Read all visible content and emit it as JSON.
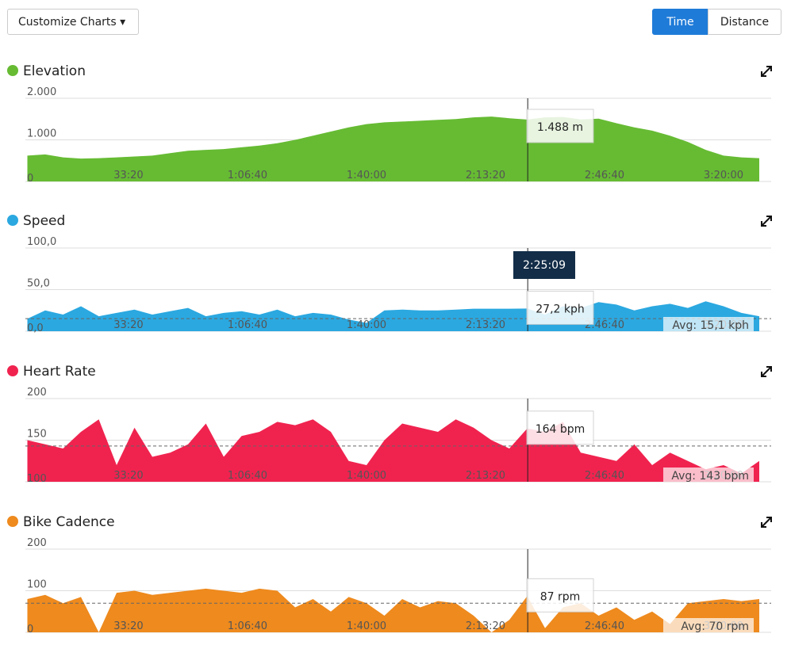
{
  "controls": {
    "customize": "Customize Charts",
    "time": "Time",
    "distance": "Distance"
  },
  "cursor": {
    "value": 8709,
    "label": "2:25:09"
  },
  "chart_data": [
    {
      "type": "area",
      "title": "Elevation",
      "color": "#66bb33",
      "x": [
        300,
        600,
        900,
        1200,
        1500,
        1800,
        2100,
        2400,
        2700,
        3000,
        3300,
        3600,
        3900,
        4200,
        4500,
        4800,
        5100,
        5400,
        5700,
        6000,
        6300,
        6600,
        6900,
        7200,
        7500,
        7800,
        8100,
        8400,
        8700,
        9000,
        9300,
        9600,
        9900,
        10200,
        10500,
        10800,
        11100,
        11400,
        11700,
        12000,
        12300,
        12600
      ],
      "values": [
        620,
        650,
        580,
        550,
        560,
        580,
        600,
        620,
        680,
        740,
        760,
        780,
        820,
        860,
        920,
        1000,
        1100,
        1200,
        1300,
        1380,
        1420,
        1440,
        1460,
        1480,
        1500,
        1540,
        1560,
        1520,
        1488,
        1540,
        1550,
        1490,
        1510,
        1400,
        1300,
        1220,
        1100,
        950,
        760,
        620,
        580,
        560
      ],
      "xlim": [
        267,
        12800
      ],
      "xticks": [
        {
          "value": 2000,
          "label": "33:20"
        },
        {
          "value": 4000,
          "label": "1:06:40"
        },
        {
          "value": 6000,
          "label": "1:40:00"
        },
        {
          "value": 8000,
          "label": "2:13:20"
        },
        {
          "value": 10000,
          "label": "2:46:40"
        },
        {
          "value": 12000,
          "label": "3:20:00"
        }
      ],
      "ylim": [
        0,
        2000
      ],
      "yticks": [
        0,
        {
          "value": 1000,
          "label": "1.000"
        },
        {
          "value": 2000,
          "label": "2.000"
        }
      ],
      "grid": true,
      "cursor_value": {
        "value": 1488,
        "label": "1.488 m"
      }
    },
    {
      "type": "area",
      "title": "Speed",
      "color": "#2ba8e0",
      "x": [
        300,
        600,
        900,
        1200,
        1500,
        1800,
        2100,
        2400,
        2700,
        3000,
        3300,
        3600,
        3900,
        4200,
        4500,
        4800,
        5100,
        5400,
        5700,
        6000,
        6300,
        6600,
        6900,
        7200,
        7500,
        7800,
        8100,
        8400,
        8700,
        9000,
        9300,
        9600,
        9900,
        10200,
        10500,
        10800,
        11100,
        11400,
        11700,
        12000,
        12300,
        12600
      ],
      "values": [
        15,
        25,
        20,
        30,
        18,
        22,
        26,
        20,
        24,
        28,
        18,
        22,
        24,
        20,
        26,
        18,
        22,
        20,
        14,
        10,
        25,
        26,
        25,
        25,
        26,
        27,
        27,
        27,
        27.2,
        20,
        30,
        28,
        35,
        32,
        25,
        30,
        33,
        28,
        36,
        30,
        22,
        18
      ],
      "xlim": [
        267,
        12800
      ],
      "xticks": [
        {
          "value": 2000,
          "label": "33:20"
        },
        {
          "value": 4000,
          "label": "1:06:40"
        },
        {
          "value": 6000,
          "label": "1:40:00"
        },
        {
          "value": 8000,
          "label": "2:13:20"
        },
        {
          "value": 10000,
          "label": "2:46:40"
        },
        {
          "value": 12000,
          "label": "3:20:00"
        }
      ],
      "ylim": [
        0,
        100
      ],
      "yticks": [
        {
          "value": 0,
          "label": "0,0"
        },
        {
          "value": 50,
          "label": "50,0"
        },
        {
          "value": 100,
          "label": "100,0"
        }
      ],
      "grid": true,
      "average": {
        "value": 15.1,
        "label": "Avg: 15,1 kph"
      },
      "cursor_value": {
        "value": 27.2,
        "label": "27,2 kph"
      }
    },
    {
      "type": "area",
      "title": "Heart Rate",
      "color": "#f0234f",
      "x": [
        300,
        600,
        900,
        1200,
        1500,
        1800,
        2100,
        2400,
        2700,
        3000,
        3300,
        3600,
        3900,
        4200,
        4500,
        4800,
        5100,
        5400,
        5700,
        6000,
        6300,
        6600,
        6900,
        7200,
        7500,
        7800,
        8100,
        8400,
        8700,
        9000,
        9300,
        9600,
        9900,
        10200,
        10500,
        10800,
        11100,
        11400,
        11700,
        12000,
        12300,
        12600
      ],
      "values": [
        150,
        145,
        140,
        160,
        175,
        120,
        165,
        130,
        135,
        145,
        170,
        130,
        155,
        160,
        172,
        168,
        175,
        160,
        125,
        120,
        150,
        170,
        165,
        160,
        175,
        165,
        150,
        140,
        164,
        160,
        172,
        135,
        130,
        125,
        145,
        120,
        135,
        125,
        115,
        120,
        110,
        125
      ],
      "xlim": [
        267,
        12800
      ],
      "xticks": [
        {
          "value": 2000,
          "label": "33:20"
        },
        {
          "value": 4000,
          "label": "1:06:40"
        },
        {
          "value": 6000,
          "label": "1:40:00"
        },
        {
          "value": 8000,
          "label": "2:13:20"
        },
        {
          "value": 10000,
          "label": "2:46:40"
        },
        {
          "value": 12000,
          "label": "3:20:00"
        }
      ],
      "ylim": [
        100,
        200
      ],
      "yticks": [
        100,
        150,
        200
      ],
      "grid": true,
      "average": {
        "value": 143,
        "label": "Avg: 143 bpm"
      },
      "cursor_value": {
        "value": 164,
        "label": "164 bpm"
      }
    },
    {
      "type": "area",
      "title": "Bike Cadence",
      "color": "#ee8a1e",
      "x": [
        300,
        600,
        900,
        1200,
        1500,
        1800,
        2100,
        2400,
        2700,
        3000,
        3300,
        3600,
        3900,
        4200,
        4500,
        4800,
        5100,
        5400,
        5700,
        6000,
        6300,
        6600,
        6900,
        7200,
        7500,
        7800,
        8100,
        8400,
        8700,
        9000,
        9300,
        9600,
        9900,
        10200,
        10500,
        10800,
        11100,
        11400,
        11700,
        12000,
        12300,
        12600
      ],
      "values": [
        80,
        90,
        70,
        85,
        0,
        95,
        100,
        90,
        95,
        100,
        105,
        100,
        95,
        105,
        100,
        60,
        80,
        50,
        85,
        70,
        40,
        80,
        60,
        75,
        70,
        40,
        0,
        30,
        87,
        10,
        60,
        70,
        40,
        60,
        30,
        50,
        20,
        70,
        75,
        80,
        75,
        80
      ],
      "xlim": [
        267,
        12800
      ],
      "xticks": [
        {
          "value": 2000,
          "label": "33:20"
        },
        {
          "value": 4000,
          "label": "1:06:40"
        },
        {
          "value": 6000,
          "label": "1:40:00"
        },
        {
          "value": 8000,
          "label": "2:13:20"
        },
        {
          "value": 10000,
          "label": "2:46:40"
        },
        {
          "value": 12000,
          "label": "3:20:00"
        }
      ],
      "ylim": [
        0,
        200
      ],
      "yticks": [
        0,
        100,
        200
      ],
      "grid": true,
      "average": {
        "value": 70,
        "label": "Avg: 70 rpm"
      },
      "cursor_value": {
        "value": 87,
        "label": "87 rpm"
      }
    }
  ]
}
